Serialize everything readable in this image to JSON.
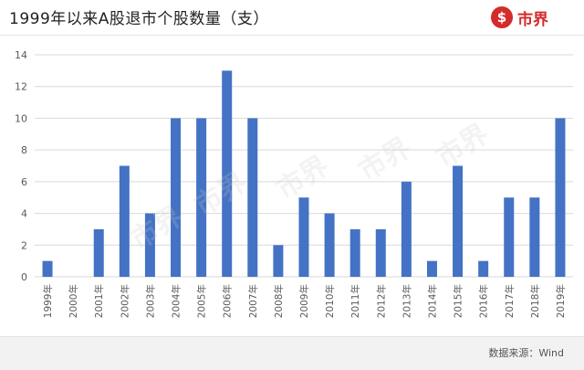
{
  "header": {
    "title": "1999年以来A股退市个股数量（支）",
    "logo_symbol": "$",
    "logo_text": "市界"
  },
  "watermark_text": "市界",
  "footer": {
    "source": "数据来源：Wind"
  },
  "colors": {
    "bar": "#4472c4",
    "grid": "#d9d9d9",
    "axis_text": "#595959",
    "brand": "#d42b2b"
  },
  "chart_data": {
    "type": "bar",
    "title": "1999年以来A股退市个股数量（支）",
    "xlabel": "",
    "ylabel": "",
    "categories": [
      "1999年",
      "2000年",
      "2001年",
      "2002年",
      "2003年",
      "2004年",
      "2005年",
      "2006年",
      "2007年",
      "2008年",
      "2009年",
      "2010年",
      "2011年",
      "2012年",
      "2013年",
      "2014年",
      "2015年",
      "2016年",
      "2017年",
      "2018年",
      "2019年"
    ],
    "values": [
      1,
      0,
      3,
      7,
      4,
      10,
      10,
      13,
      10,
      2,
      5,
      4,
      3,
      3,
      6,
      1,
      7,
      1,
      5,
      5,
      10
    ],
    "ylim": [
      0,
      14
    ],
    "yticks": [
      0,
      2,
      4,
      6,
      8,
      10,
      12,
      14
    ],
    "grid": true,
    "legend": "none"
  }
}
